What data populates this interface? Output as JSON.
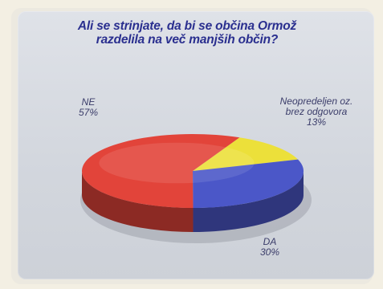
{
  "chart_data": {
    "type": "pie",
    "title": "Ali se strinjate, da bi se občina Ormož razdelila na več manjših občin?",
    "title_lines": [
      "Ali se strinjate, da bi se občina Ormož",
      "razdelila na več manjših občin?"
    ],
    "slices": [
      {
        "name": "NE",
        "value": 57,
        "label": "57%",
        "color": "#e2443a"
      },
      {
        "name": "Neopredeljen oz. brez odgovora",
        "label_lines": [
          "Neopredeljen oz.",
          "brez odgovora"
        ],
        "value": 13,
        "label": "13%",
        "color": "#ece03a"
      },
      {
        "name": "DA",
        "value": 30,
        "label": "30%",
        "color": "#4b57c8"
      }
    ],
    "style": "3d-pie"
  }
}
